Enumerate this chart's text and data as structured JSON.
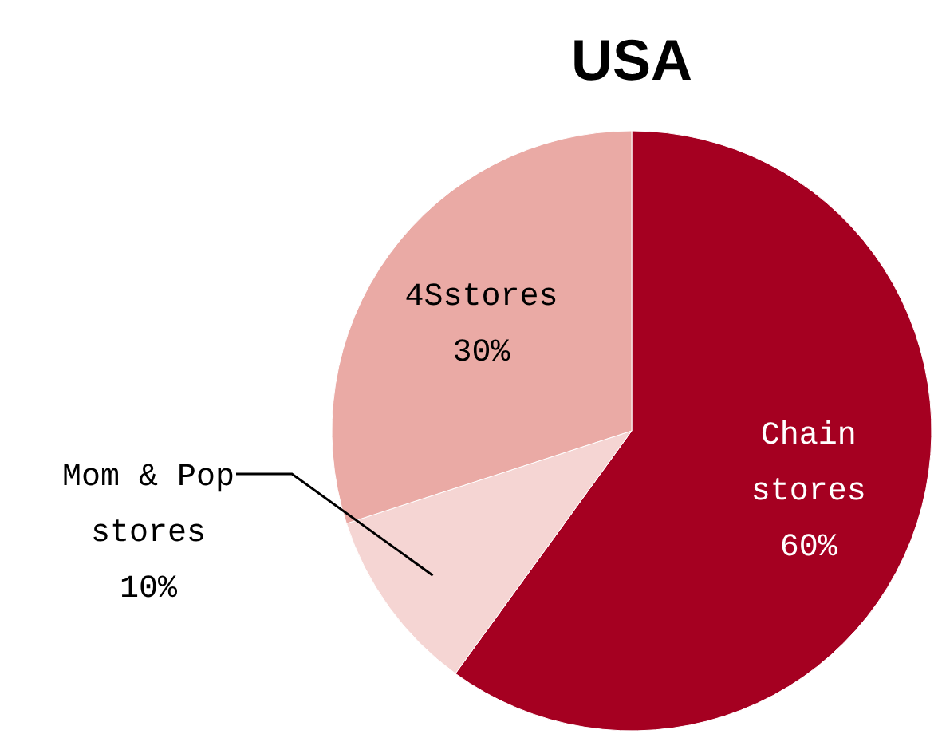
{
  "chart_data": {
    "type": "pie",
    "title": "USA",
    "categories": [
      "Chain stores",
      "Mom & Pop stores",
      "4Sstores"
    ],
    "values": [
      60,
      10,
      30
    ],
    "value_labels": [
      "60%",
      "10%",
      "30%"
    ],
    "colors": [
      "#a50021",
      "#f5d5d3",
      "#eaaaa5"
    ]
  }
}
